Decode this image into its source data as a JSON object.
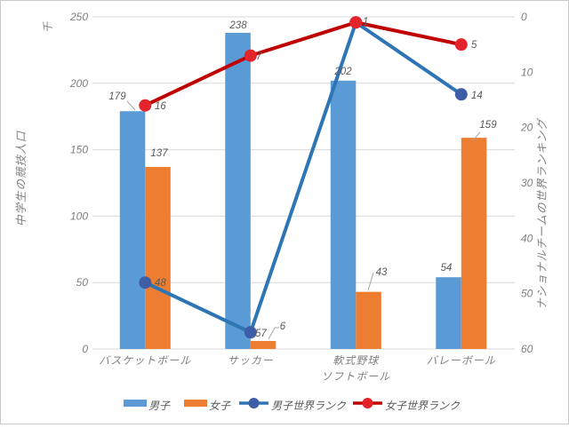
{
  "window": {
    "background": "#ffffff",
    "border_color": "#c9c9c9"
  },
  "chart_data": {
    "type": "combo-bar-line",
    "categories": [
      {
        "key": "basketball",
        "lines": [
          "バスケットボール"
        ]
      },
      {
        "key": "soccer",
        "lines": [
          "サッカー"
        ]
      },
      {
        "key": "baseball-softball",
        "lines": [
          "軟式野球",
          "ソフトボール"
        ]
      },
      {
        "key": "volleyball",
        "lines": [
          "バレーボール"
        ]
      }
    ],
    "bar_series": [
      {
        "key": "boys",
        "name": "男子",
        "color": "#5B9BD5",
        "axis": "left",
        "values": [
          179,
          238,
          202,
          54
        ]
      },
      {
        "key": "girls",
        "name": "女子",
        "color": "#ED7D31",
        "axis": "left",
        "values": [
          137,
          6,
          43,
          159
        ]
      }
    ],
    "line_series": [
      {
        "key": "boys-world-rank",
        "name": "男子世界ランク",
        "line_color": "#2E75B6",
        "marker_color": "#3D5DA7",
        "axis": "right",
        "values": [
          48,
          57,
          1,
          14
        ],
        "visible_labels": [
          "48",
          "57",
          null,
          "14"
        ]
      },
      {
        "key": "girls-world-rank",
        "name": "女子世界ランク",
        "line_color": "#C00000",
        "marker_color": "#E3242B",
        "axis": "right",
        "values": [
          16,
          7,
          1,
          5
        ],
        "visible_labels": [
          "16",
          "7",
          "1",
          "5"
        ]
      }
    ],
    "left_axis": {
      "unit_label": "千",
      "title": "中学生の競技人口",
      "min": 0,
      "max": 250,
      "step": 50,
      "tick_labels": [
        "0",
        "50",
        "100",
        "150",
        "200",
        "250"
      ]
    },
    "right_axis": {
      "title": "ナショナルチームの世界ランキング",
      "min": 0,
      "max": 60,
      "step": 10,
      "descending": true,
      "tick_labels": [
        "0",
        "10",
        "20",
        "30",
        "40",
        "50",
        "60"
      ]
    },
    "legend": {
      "position": "bottom",
      "items": [
        "男子",
        "女子",
        "男子世界ランク",
        "女子世界ランク"
      ]
    },
    "grid": "horizontal",
    "colors": {
      "gridline": "#d9d9d9",
      "axis_text": "#7f7f7f",
      "data_label": "#595959",
      "leader_line": "#a6a6a6",
      "legend_text": "#595959"
    }
  }
}
